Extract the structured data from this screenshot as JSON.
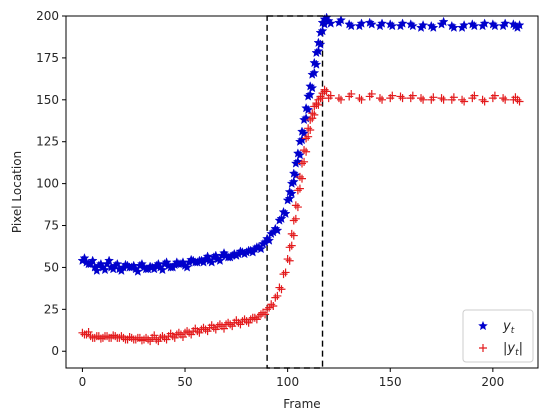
{
  "chart_data": {
    "type": "scatter",
    "title": "",
    "xlabel": "Frame",
    "ylabel": "Pixel Location",
    "xlim": [
      -8,
      222
    ],
    "ylim": [
      -10,
      200
    ],
    "xticks": [
      0,
      50,
      100,
      150,
      200
    ],
    "yticks": [
      0,
      25,
      50,
      75,
      100,
      125,
      150,
      175,
      200
    ],
    "grid": false,
    "legend_position": "lower right",
    "highlight_box": {
      "x": [
        90,
        117
      ],
      "y": [
        -10,
        200
      ]
    },
    "series": [
      {
        "name": "y_t",
        "legend_main": "y",
        "legend_sub": "t",
        "marker": "star",
        "color": "#0000cc",
        "x": [
          0,
          2,
          4,
          6,
          8,
          10,
          12,
          14,
          16,
          18,
          20,
          22,
          24,
          26,
          28,
          30,
          32,
          34,
          36,
          38,
          40,
          42,
          44,
          46,
          48,
          50,
          52,
          54,
          56,
          58,
          60,
          62,
          64,
          66,
          68,
          70,
          72,
          74,
          76,
          78,
          80,
          82,
          84,
          86,
          88,
          90,
          92,
          94,
          96,
          98,
          100,
          101,
          102,
          103,
          104,
          105,
          106,
          107,
          108,
          109,
          110,
          111,
          112,
          113,
          114,
          115,
          116,
          117,
          118,
          120,
          125,
          130,
          135,
          140,
          145,
          150,
          155,
          160,
          165,
          170,
          175,
          180,
          185,
          190,
          195,
          200,
          205,
          210,
          212
        ],
        "y": [
          54,
          53,
          52,
          50,
          51,
          50,
          52,
          50,
          51,
          49,
          50,
          51,
          50,
          49,
          51,
          50,
          49,
          50,
          51,
          50,
          52,
          51,
          50,
          53,
          52,
          51,
          53,
          54,
          53,
          54,
          55,
          54,
          56,
          55,
          57,
          57,
          56,
          58,
          58,
          59,
          59,
          60,
          61,
          62,
          64,
          67,
          70,
          73,
          78,
          83,
          90,
          95,
          100,
          106,
          112,
          118,
          125,
          131,
          138,
          145,
          152,
          158,
          165,
          172,
          178,
          184,
          190,
          196,
          198,
          197,
          196,
          195,
          194,
          196,
          194,
          195,
          194,
          195,
          193,
          194,
          195,
          194,
          193,
          195,
          194,
          195,
          194,
          195,
          193
        ],
        "y_scatter": [
          1.5,
          -1,
          2,
          -2,
          1,
          -1.5,
          2,
          -1,
          1,
          -1,
          1.5,
          -1,
          1,
          -1.5,
          1,
          -1,
          1.5,
          -1,
          1,
          -1.5,
          1,
          -1,
          1.5,
          -1,
          1,
          -1,
          1.5,
          -1,
          1,
          -1,
          1.5,
          -1,
          1,
          -1,
          1.5,
          -1,
          1,
          -1,
          1.5,
          -1,
          1,
          -1,
          1,
          -1,
          1,
          -1,
          1,
          -1,
          1,
          -1,
          1,
          -1,
          1,
          -1,
          1,
          -1,
          1,
          -1,
          1,
          -1,
          1,
          -1,
          1,
          -1,
          1,
          -1,
          1,
          -1,
          1,
          -1.5,
          1.5,
          -1,
          1.5,
          -1,
          1.5,
          -1,
          1.5,
          -1,
          1.5,
          -1,
          1.5,
          -1,
          1.5,
          -1,
          1.5,
          -1,
          1.5,
          -1,
          1.5
        ]
      },
      {
        "name": "|y_t|",
        "legend_main": "|y",
        "legend_sub": "t",
        "legend_tail": "|",
        "marker": "plus",
        "color": "#e31a1c",
        "x": [
          0,
          2,
          4,
          6,
          8,
          10,
          12,
          14,
          16,
          18,
          20,
          22,
          24,
          26,
          28,
          30,
          32,
          34,
          36,
          38,
          40,
          42,
          44,
          46,
          48,
          50,
          52,
          54,
          56,
          58,
          60,
          62,
          64,
          66,
          68,
          70,
          72,
          74,
          76,
          78,
          80,
          82,
          84,
          86,
          88,
          90,
          92,
          94,
          96,
          98,
          100,
          101,
          102,
          103,
          104,
          105,
          106,
          107,
          108,
          109,
          110,
          111,
          112,
          113,
          114,
          115,
          116,
          117,
          118,
          120,
          125,
          130,
          135,
          140,
          145,
          150,
          155,
          160,
          165,
          170,
          175,
          180,
          185,
          190,
          195,
          200,
          205,
          210,
          212
        ],
        "y": [
          11,
          10,
          9,
          8,
          9,
          8,
          9,
          8,
          9,
          8,
          8,
          7,
          8,
          7,
          8,
          7,
          7,
          8,
          7,
          8,
          8,
          9,
          9,
          10,
          10,
          11,
          11,
          12,
          12,
          13,
          13,
          14,
          14,
          15,
          15,
          16,
          16,
          17,
          17,
          18,
          18,
          19,
          20,
          21,
          23,
          25,
          28,
          32,
          38,
          46,
          55,
          62,
          70,
          78,
          87,
          96,
          104,
          112,
          120,
          127,
          133,
          138,
          142,
          146,
          148,
          150,
          152,
          154,
          156,
          151,
          151,
          152,
          151,
          152,
          151,
          151,
          152,
          151,
          151,
          150,
          151,
          150,
          150,
          151,
          150,
          151,
          151,
          150,
          150
        ],
        "y_scatter": [
          -1,
          1.5,
          -1,
          1,
          -1.5,
          1,
          -1,
          1.5,
          -1,
          1,
          -1,
          1.5,
          -1,
          1,
          -1.5,
          1,
          -1,
          1.5,
          -1,
          1,
          -1,
          1.5,
          -1,
          1,
          -1.5,
          1,
          -1,
          1.5,
          -1,
          1,
          -1,
          1.5,
          -1,
          1,
          -1.5,
          1,
          -1,
          1.5,
          -1,
          1,
          -1,
          1,
          -1,
          1,
          -1,
          1,
          -1,
          1,
          -1,
          1,
          -1,
          1,
          -1,
          1,
          -1,
          1,
          -1,
          1,
          -1,
          1,
          -1,
          1,
          -1,
          1,
          -1,
          1,
          -1,
          1,
          -1,
          1.5,
          -1,
          1.5,
          -1,
          1.5,
          -1,
          1.5,
          -1,
          1.5,
          -1,
          1.5,
          -1,
          1.5,
          -1,
          1.5,
          -1,
          1.5,
          -1,
          1.5,
          -1
        ]
      }
    ]
  }
}
